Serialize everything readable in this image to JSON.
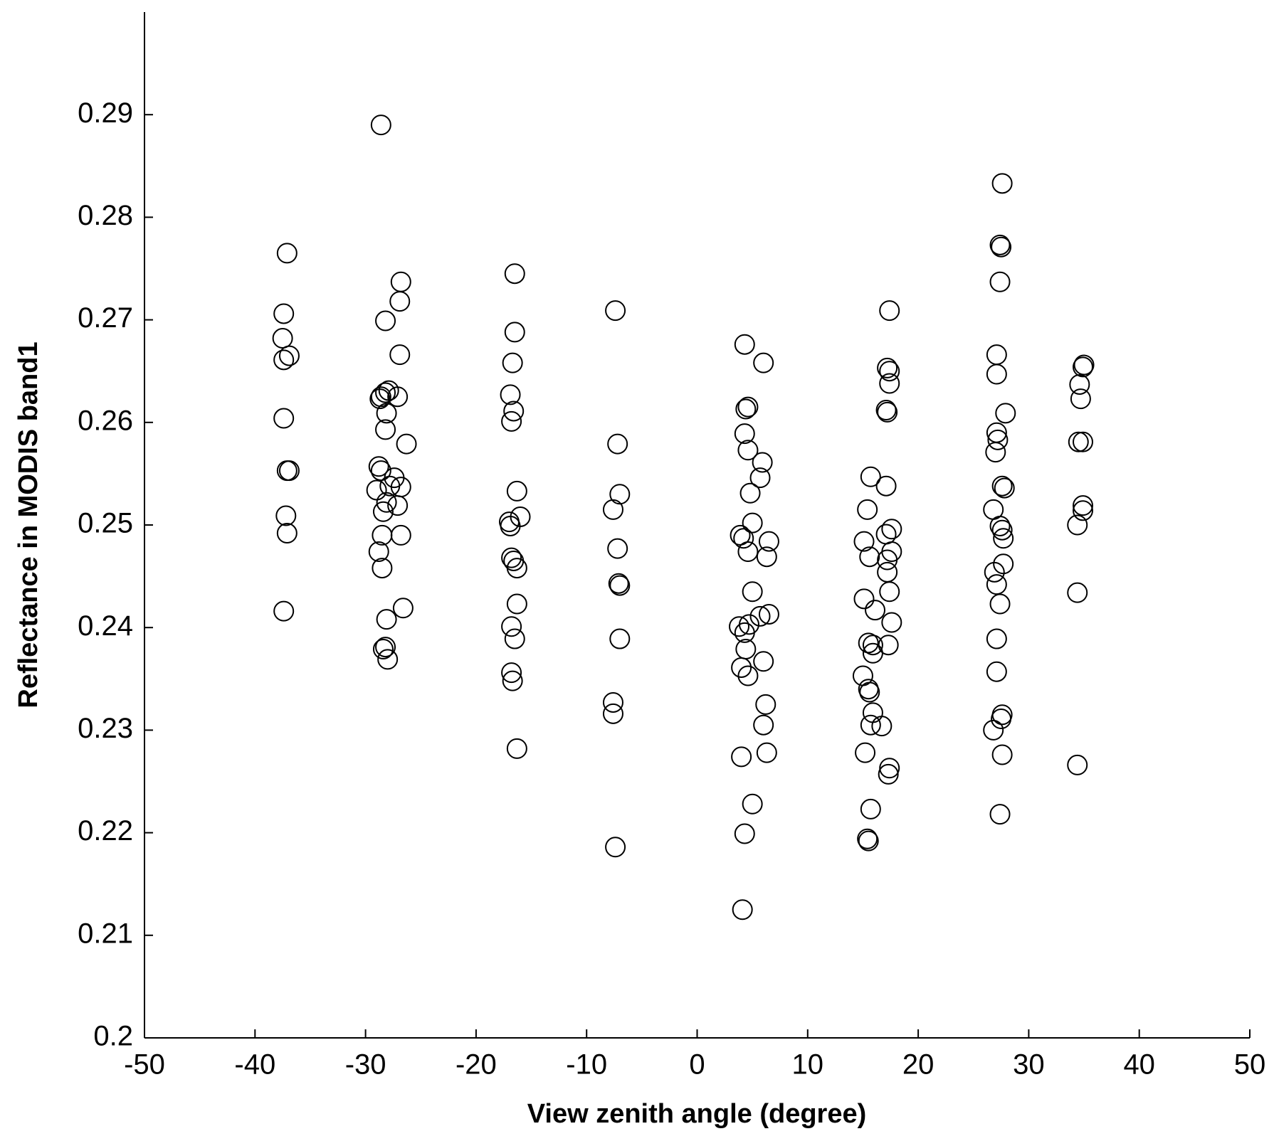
{
  "chart_data": {
    "type": "scatter",
    "xlabel": "View zenith angle (degree)",
    "ylabel": "Reflectance in MODIS band1",
    "xlim": [
      -50,
      50
    ],
    "ylim": [
      0.2,
      0.3
    ],
    "xticks": [
      -50,
      -40,
      -30,
      -20,
      -10,
      0,
      10,
      20,
      30,
      40,
      50
    ],
    "yticks": [
      0.2,
      0.21,
      0.22,
      0.23,
      0.24,
      0.25,
      0.26,
      0.27,
      0.28,
      0.29
    ],
    "color": "#000000",
    "x": [
      -37.1,
      -37.4,
      -37.5,
      -37.4,
      -36.9,
      -37.4,
      -37.1,
      -36.9,
      -37.2,
      -37.1,
      -37.4,
      -28.6,
      -28.2,
      -26.8,
      -26.9,
      -26.9,
      -28.6,
      -28.2,
      -27.9,
      -28.7,
      -27.1,
      -28.1,
      -28.2,
      -26.3,
      -28.8,
      -28.6,
      -27.4,
      -27.8,
      -26.8,
      -29.0,
      -28.1,
      -28.4,
      -27.1,
      -28.5,
      -26.8,
      -28.8,
      -28.5,
      -28.1,
      -26.6,
      -28.2,
      -28.4,
      -28.0,
      -16.5,
      -16.5,
      -16.7,
      -16.9,
      -16.6,
      -16.8,
      -16.3,
      -16.0,
      -17.0,
      -16.9,
      -16.8,
      -16.6,
      -16.3,
      -16.3,
      -16.8,
      -16.5,
      -16.8,
      -16.7,
      -16.3,
      -7.4,
      -7.2,
      -7.0,
      -7.6,
      -7.2,
      -7.1,
      -7.0,
      -7.0,
      -7.6,
      -7.6,
      -7.4,
      4.3,
      6.0,
      4.6,
      4.4,
      4.3,
      4.6,
      5.9,
      5.7,
      4.8,
      5.0,
      3.9,
      4.2,
      6.5,
      4.6,
      6.3,
      5.0,
      6.5,
      5.7,
      3.8,
      4.7,
      4.3,
      4.4,
      4.0,
      4.6,
      6.0,
      6.2,
      6.0,
      6.3,
      4.0,
      5.0,
      4.3,
      4.1,
      17.4,
      17.2,
      17.4,
      17.4,
      17.1,
      17.2,
      15.7,
      17.1,
      15.4,
      17.6,
      17.1,
      15.1,
      15.6,
      17.6,
      17.2,
      17.2,
      17.4,
      15.1,
      16.1,
      17.6,
      15.5,
      15.9,
      17.3,
      15.9,
      15.0,
      15.5,
      15.6,
      15.9,
      15.7,
      16.7,
      17.4,
      17.3,
      15.2,
      15.7,
      15.4,
      15.5,
      27.6,
      27.4,
      27.5,
      27.4,
      27.1,
      27.1,
      27.9,
      27.1,
      27.2,
      27.0,
      27.6,
      27.8,
      26.8,
      27.4,
      27.6,
      27.7,
      27.7,
      26.9,
      27.1,
      27.4,
      27.1,
      27.1,
      27.6,
      27.5,
      26.8,
      27.6,
      27.4,
      34.9,
      35.0,
      34.6,
      34.7,
      34.5,
      34.9,
      34.9,
      34.9,
      34.4,
      34.4,
      34.4
    ],
    "y": [
      0.2765,
      0.2706,
      0.2682,
      0.2661,
      0.2665,
      0.2604,
      0.2553,
      0.2553,
      0.2509,
      0.2492,
      0.2416,
      0.289,
      0.2699,
      0.2737,
      0.2718,
      0.2666,
      0.2625,
      0.2629,
      0.2631,
      0.2623,
      0.2625,
      0.2609,
      0.2593,
      0.2579,
      0.2557,
      0.2553,
      0.2546,
      0.2538,
      0.2537,
      0.2534,
      0.2522,
      0.2513,
      0.2519,
      0.249,
      0.249,
      0.2474,
      0.2458,
      0.2408,
      0.2419,
      0.2381,
      0.2379,
      0.2369,
      0.2745,
      0.2688,
      0.2658,
      0.2627,
      0.2611,
      0.2601,
      0.2533,
      0.2508,
      0.2503,
      0.2499,
      0.2468,
      0.2465,
      0.2458,
      0.2423,
      0.2401,
      0.2389,
      0.2356,
      0.2348,
      0.2282,
      0.2709,
      0.2579,
      0.253,
      0.2515,
      0.2477,
      0.2443,
      0.2441,
      0.2389,
      0.2327,
      0.2316,
      0.2186,
      0.2676,
      0.2658,
      0.2615,
      0.2613,
      0.2589,
      0.2573,
      0.2561,
      0.2546,
      0.2531,
      0.2502,
      0.249,
      0.2487,
      0.2484,
      0.2474,
      0.2469,
      0.2435,
      0.2413,
      0.2411,
      0.2401,
      0.2403,
      0.2395,
      0.2379,
      0.2361,
      0.2353,
      0.2367,
      0.2325,
      0.2305,
      0.2278,
      0.2274,
      0.2228,
      0.2199,
      0.2125,
      0.2709,
      0.2653,
      0.265,
      0.2638,
      0.2612,
      0.261,
      0.2547,
      0.2538,
      0.2515,
      0.2496,
      0.2491,
      0.2484,
      0.2469,
      0.2474,
      0.2466,
      0.2454,
      0.2435,
      0.2428,
      0.2417,
      0.2405,
      0.2385,
      0.2383,
      0.2383,
      0.2375,
      0.2353,
      0.234,
      0.2337,
      0.2317,
      0.2305,
      0.2304,
      0.2263,
      0.2257,
      0.2278,
      0.2223,
      0.2194,
      0.2192,
      0.2833,
      0.2773,
      0.2771,
      0.2737,
      0.2666,
      0.2647,
      0.2609,
      0.259,
      0.2583,
      0.2571,
      0.2538,
      0.2536,
      0.2515,
      0.2499,
      0.2495,
      0.2487,
      0.2462,
      0.2454,
      0.2442,
      0.2423,
      0.2389,
      0.2357,
      0.2315,
      0.2311,
      0.23,
      0.2276,
      0.2218,
      0.2654,
      0.2656,
      0.2637,
      0.2623,
      0.2581,
      0.2581,
      0.2519,
      0.2514,
      0.25,
      0.2434,
      0.2266
    ]
  }
}
